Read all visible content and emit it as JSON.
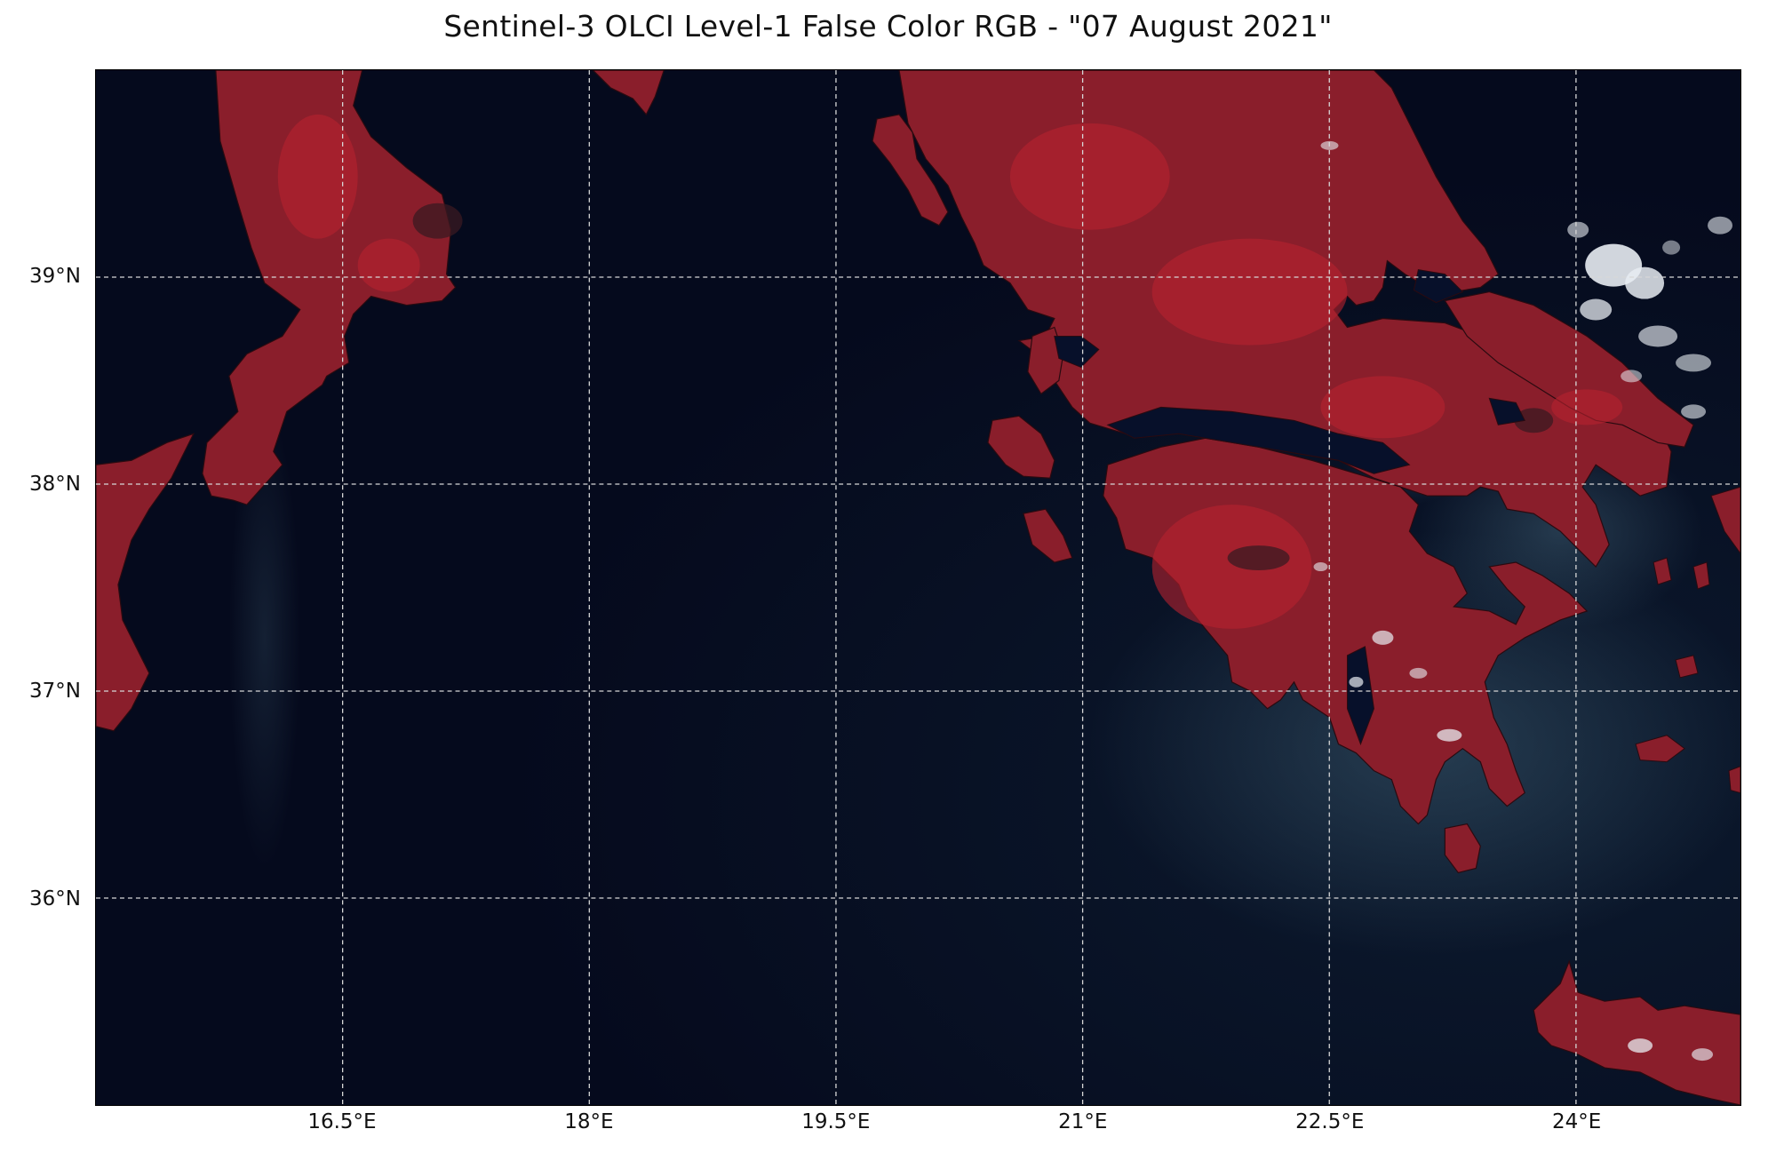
{
  "title": "Sentinel-3 OLCI Level-1 False Color RGB - \"07 August 2021\"",
  "map": {
    "extent": {
      "lon": [
        15.0,
        25.0
      ],
      "lat": [
        35.0,
        40.0
      ]
    },
    "gridlines": "on",
    "colors": {
      "sea": "#050a1d",
      "land": "#8a1e2b",
      "land_bright": "#b8222f",
      "cloud": "#e8ecf2",
      "smoke": "#3c5a6e",
      "grid": "#d8d8d8"
    },
    "x_ticks": [
      {
        "value": 16.5,
        "label": "16.5°E"
      },
      {
        "value": 18.0,
        "label": "18°E"
      },
      {
        "value": 19.5,
        "label": "19.5°E"
      },
      {
        "value": 21.0,
        "label": "21°E"
      },
      {
        "value": 22.5,
        "label": "22.5°E"
      },
      {
        "value": 24.0,
        "label": "24°E"
      }
    ],
    "y_ticks": [
      {
        "value": 39,
        "label": "39°N"
      },
      {
        "value": 38,
        "label": "38°N"
      },
      {
        "value": 37,
        "label": "37°N"
      },
      {
        "value": 36,
        "label": "36°N"
      }
    ]
  }
}
